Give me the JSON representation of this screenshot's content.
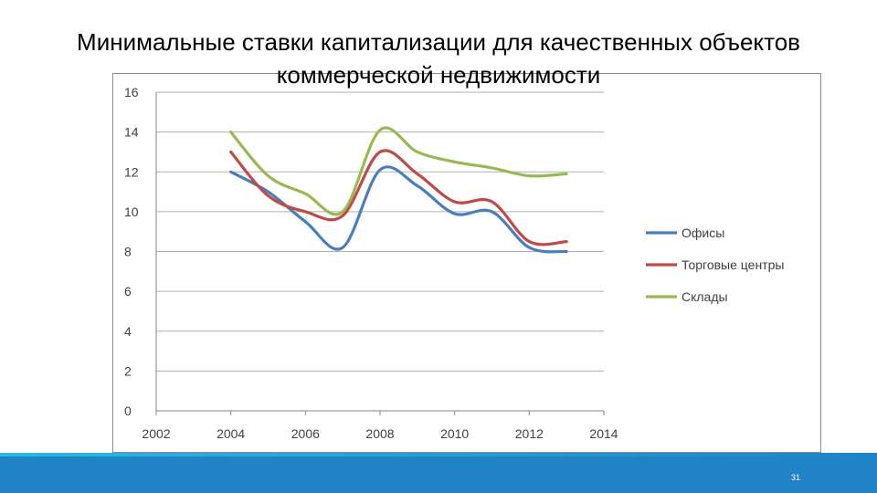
{
  "slide": {
    "title": "Минимальные ставки капитализации для качественных объектов коммерческой недвижимости",
    "page_number": "31"
  },
  "chart_data": {
    "type": "line",
    "title": "",
    "xlabel": "",
    "ylabel": "",
    "xlim": [
      2002,
      2014
    ],
    "ylim": [
      0,
      16
    ],
    "x_ticks": [
      "2002",
      "2004",
      "2006",
      "2008",
      "2010",
      "2012",
      "2014"
    ],
    "y_ticks": [
      "0",
      "2",
      "4",
      "6",
      "8",
      "10",
      "12",
      "14",
      "16"
    ],
    "grid": true,
    "legend_position": "right",
    "series": [
      {
        "name": "Офисы",
        "color": "#4a7ebb",
        "x": [
          2004,
          2005,
          2006,
          2007,
          2008,
          2009,
          2010,
          2011,
          2012,
          2013
        ],
        "values": [
          12,
          11,
          9.5,
          8.2,
          12.1,
          11.3,
          9.9,
          10,
          8.2,
          8
        ]
      },
      {
        "name": "Торговые центры",
        "color": "#be4b48",
        "x": [
          2004,
          2005,
          2006,
          2007,
          2008,
          2009,
          2010,
          2011,
          2012,
          2013
        ],
        "values": [
          13,
          10.8,
          10,
          9.8,
          13,
          11.9,
          10.5,
          10.5,
          8.5,
          8.5
        ]
      },
      {
        "name": "Склады",
        "color": "#98b954",
        "x": [
          2004,
          2005,
          2006,
          2007,
          2008,
          2009,
          2010,
          2011,
          2012,
          2013
        ],
        "values": [
          14,
          11.8,
          10.9,
          10,
          14.1,
          13,
          12.5,
          12.2,
          11.8,
          11.9
        ]
      }
    ]
  }
}
